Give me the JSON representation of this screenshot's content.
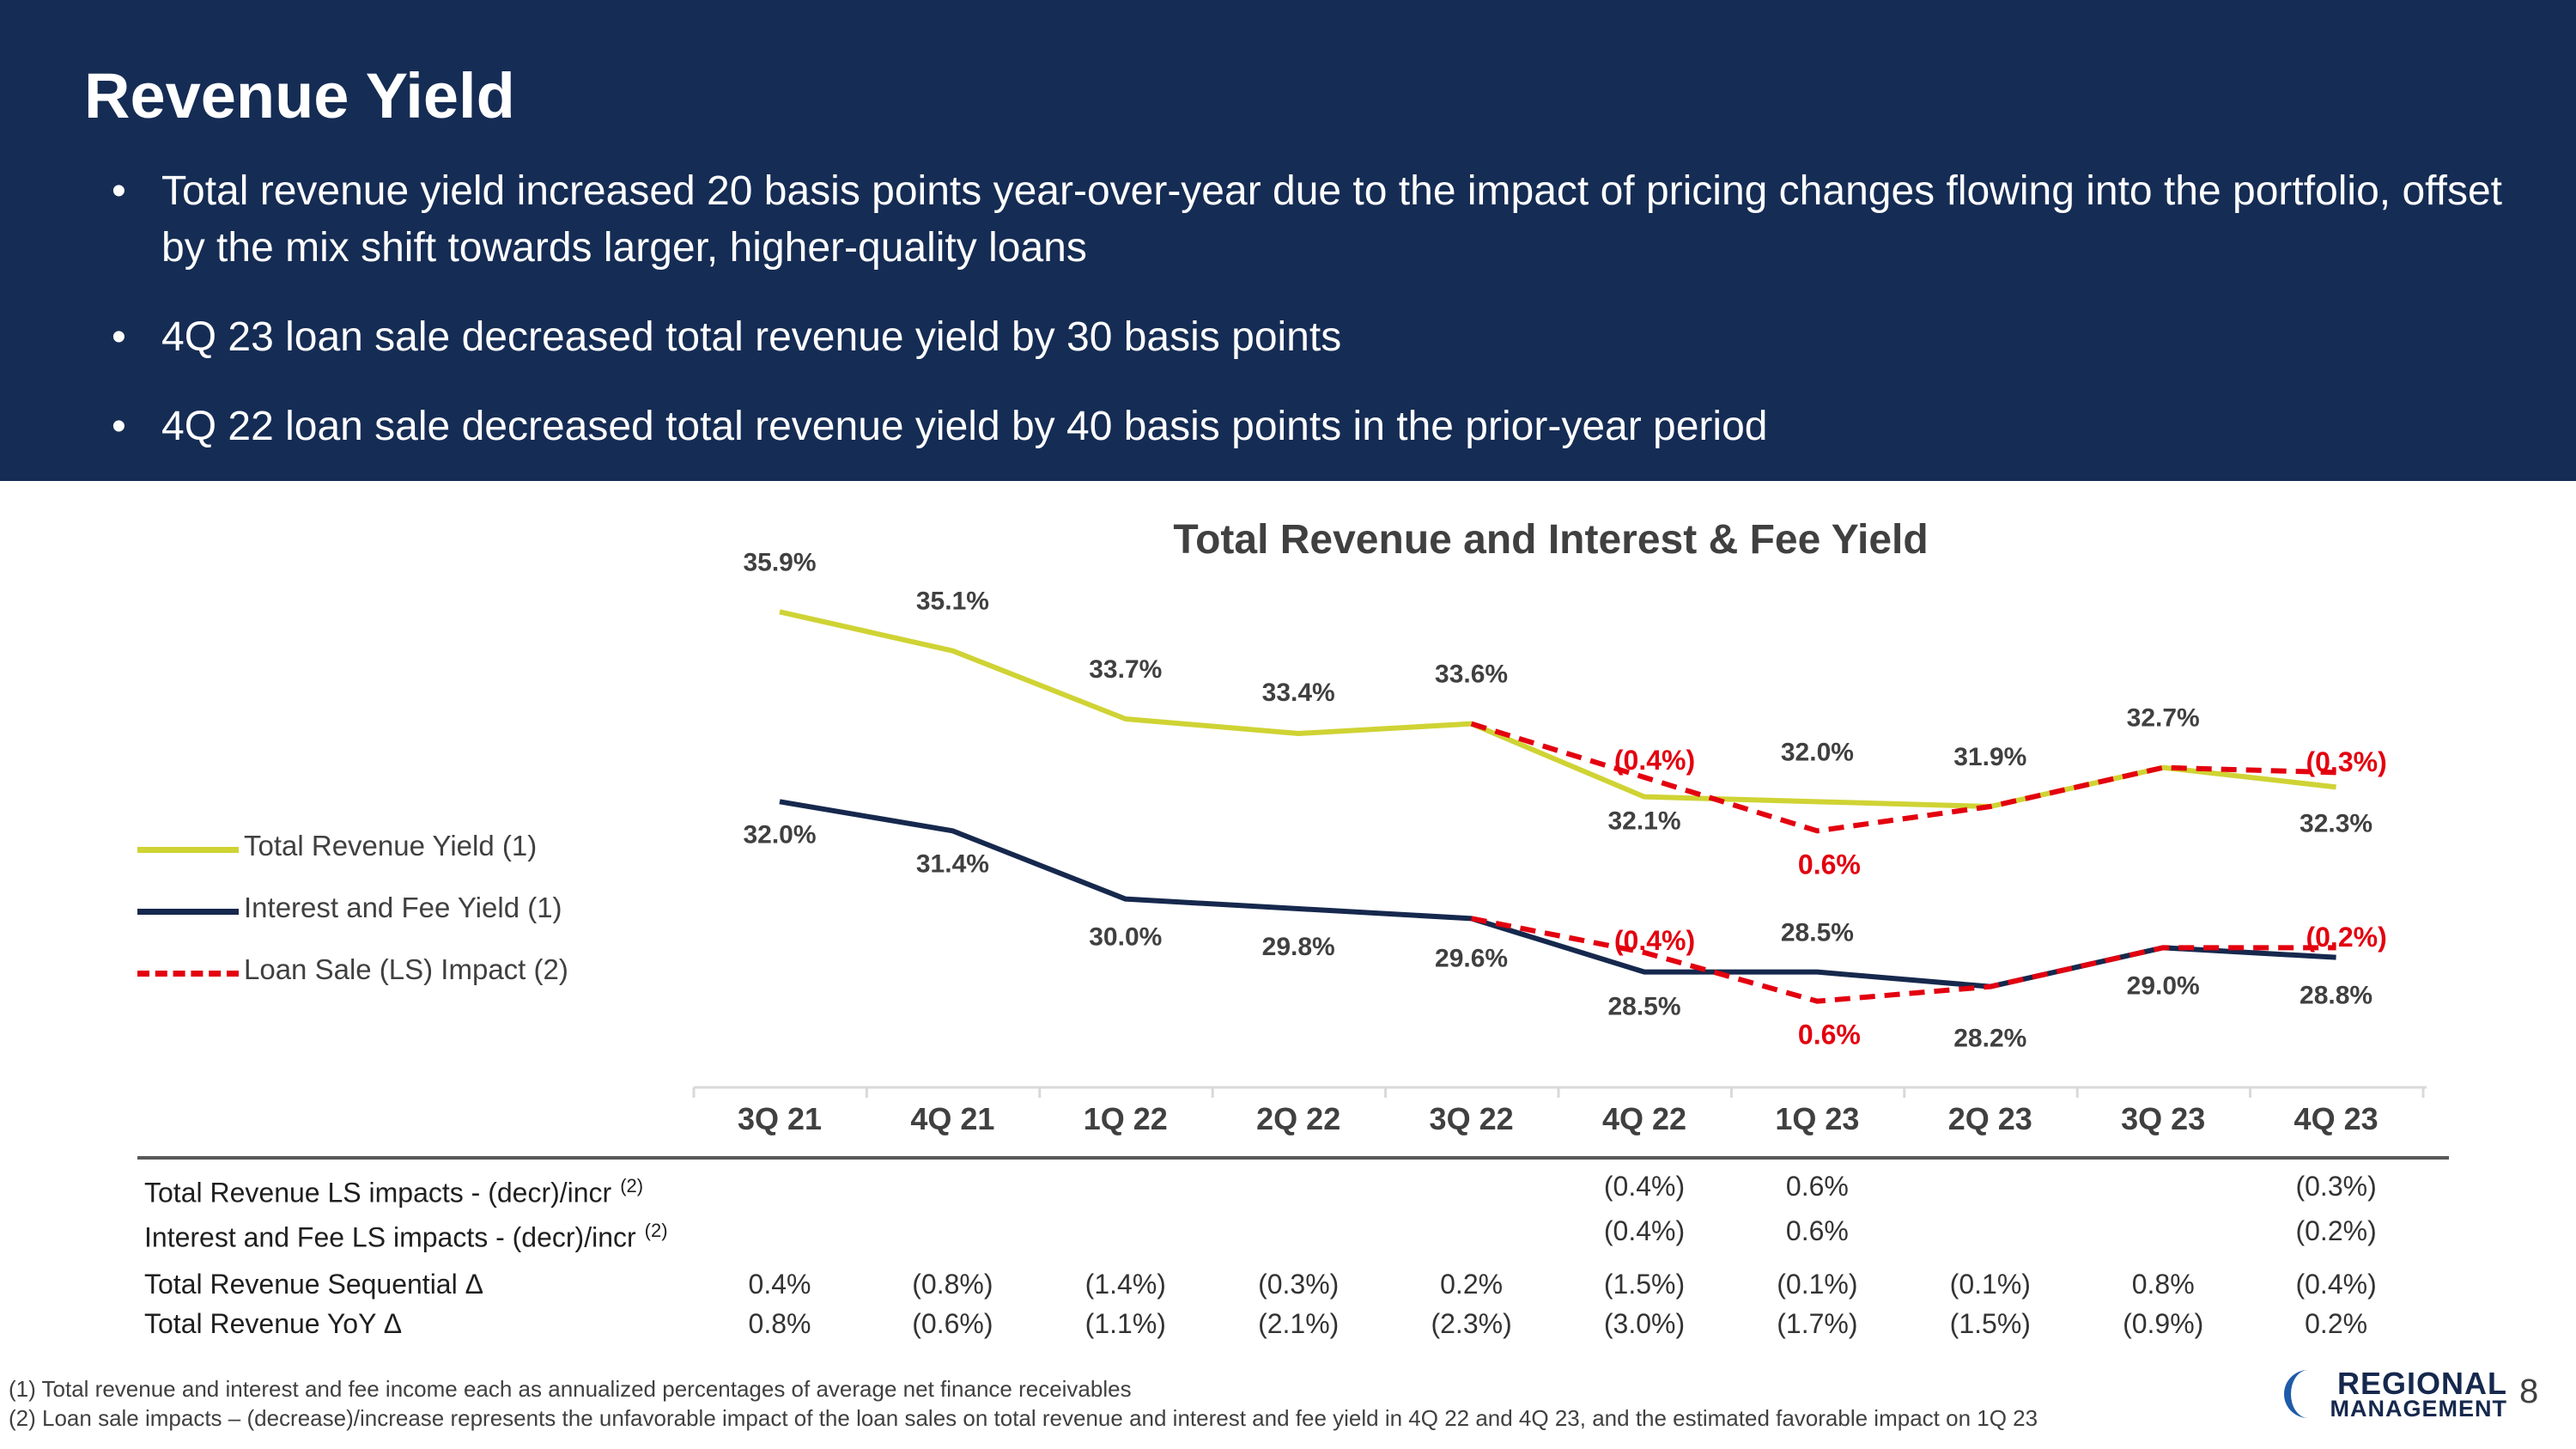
{
  "slide": {
    "title": "Revenue Yield",
    "bullets": [
      "Total revenue yield increased 20 basis points year-over-year due to the impact of pricing changes flowing into the portfolio, offset by the mix shift towards larger, higher-quality loans",
      "4Q 23 loan sale decreased total revenue yield by 30 basis points",
      "4Q 22 loan sale decreased total revenue yield by 40 basis points in the prior-year period"
    ],
    "page_number": "8"
  },
  "logo": {
    "top": "REGIONAL",
    "bottom": "MANAGEMENT"
  },
  "chart_data": {
    "type": "line",
    "title": "Total Revenue and Interest & Fee Yield",
    "categories": [
      "3Q 21",
      "4Q 21",
      "1Q 22",
      "2Q 22",
      "3Q 22",
      "4Q 22",
      "1Q 23",
      "2Q 23",
      "3Q 23",
      "4Q 23"
    ],
    "series": [
      {
        "name": "Total Revenue Yield (1)",
        "values": [
          35.9,
          35.1,
          33.7,
          33.4,
          33.6,
          32.1,
          32.0,
          31.9,
          32.7,
          32.3
        ],
        "labels": [
          "35.9%",
          "35.1%",
          "33.7%",
          "33.4%",
          "33.6%",
          "32.1%",
          "32.0%",
          "31.9%",
          "32.7%",
          "32.3%"
        ],
        "color": "#cfd334"
      },
      {
        "name": "Interest and Fee Yield (1)",
        "values": [
          32.0,
          31.4,
          30.0,
          29.8,
          29.6,
          28.5,
          28.5,
          28.2,
          29.0,
          28.8
        ],
        "labels": [
          "32.0%",
          "31.4%",
          "30.0%",
          "29.8%",
          "29.6%",
          "28.5%",
          "28.5%",
          "28.2%",
          "29.0%",
          "28.8%"
        ],
        "color": "#16284d"
      }
    ],
    "ls_impact_series": {
      "name": "Loan Sale (LS) Impact (2)",
      "color": "#e3000f",
      "total_revenue_adjusted": [
        null,
        null,
        null,
        null,
        33.6,
        32.5,
        31.4,
        31.9,
        32.7,
        32.6
      ],
      "interest_fee_adjusted": [
        null,
        null,
        null,
        null,
        29.6,
        28.9,
        27.9,
        28.2,
        29.0,
        29.0
      ],
      "impact_labels": [
        {
          "category": "4Q 22",
          "series": "total",
          "text": "(0.4%)"
        },
        {
          "category": "1Q 23",
          "series": "total",
          "text": "0.6%"
        },
        {
          "category": "4Q 23",
          "series": "total",
          "text": "(0.3%)"
        },
        {
          "category": "4Q 22",
          "series": "interest",
          "text": "(0.4%)"
        },
        {
          "category": "1Q 23",
          "series": "interest",
          "text": "0.6%"
        },
        {
          "category": "4Q 23",
          "series": "interest",
          "text": "(0.2%)"
        }
      ]
    },
    "ylim": [
      26.5,
      37.0
    ],
    "legend_position": "left",
    "legend": [
      "Total Revenue Yield (1)",
      "Interest and Fee Yield (1)",
      "Loan Sale (LS) Impact (2)"
    ]
  },
  "table": {
    "rows": [
      {
        "label": "Total Revenue LS impacts - (decr)/incr",
        "sup": "(2)",
        "values": [
          "",
          "",
          "",
          "",
          "",
          "(0.4%)",
          "0.6%",
          "",
          "",
          "(0.3%)"
        ]
      },
      {
        "label": "Interest and Fee LS impacts - (decr)/incr",
        "sup": "(2)",
        "values": [
          "",
          "",
          "",
          "",
          "",
          "(0.4%)",
          "0.6%",
          "",
          "",
          "(0.2%)"
        ]
      },
      {
        "label": "Total Revenue Sequential Δ",
        "sup": "",
        "values": [
          "0.4%",
          "(0.8%)",
          "(1.4%)",
          "(0.3%)",
          "0.2%",
          "(1.5%)",
          "(0.1%)",
          "(0.1%)",
          "0.8%",
          "(0.4%)"
        ]
      },
      {
        "label": "Total Revenue YoY Δ",
        "sup": "",
        "values": [
          "0.8%",
          "(0.6%)",
          "(1.1%)",
          "(2.1%)",
          "(2.3%)",
          "(3.0%)",
          "(1.7%)",
          "(1.5%)",
          "(0.9%)",
          "0.2%"
        ]
      }
    ]
  },
  "footnotes": [
    "(1)  Total revenue and interest and fee income each as annualized percentages of average net finance receivables",
    "(2)  Loan sale impacts – (decrease)/increase represents the unfavorable impact of the loan sales on total revenue and interest and fee yield in 4Q 22 and 4Q 23, and the estimated favorable impact on 1Q 23"
  ]
}
